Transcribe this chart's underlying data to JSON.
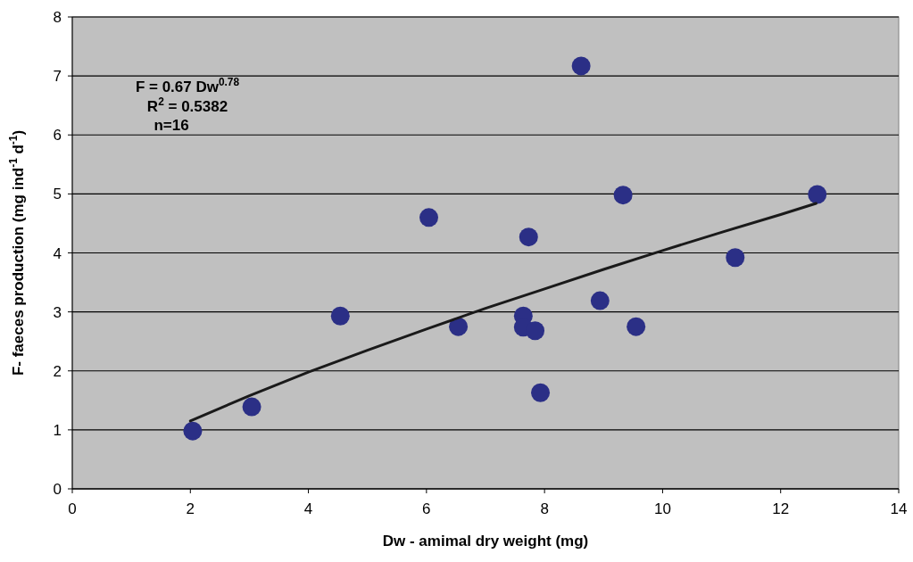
{
  "chart_data": {
    "type": "scatter",
    "xlabel": "Dw - amimal dry weight (mg)",
    "ylabel": "F- faeces production (mg ind$^{-1}$ d$^{-1}$)",
    "xlim": [
      0,
      14
    ],
    "xticks": [
      0,
      2,
      4,
      6,
      8,
      10,
      12,
      14
    ],
    "ylim": [
      0,
      8
    ],
    "yticks": [
      0,
      1,
      2,
      3,
      4,
      5,
      6,
      7,
      8
    ],
    "grid": "y",
    "marker": "circle",
    "annotations": [
      "F = 0.67 Dw$^{0.78}$",
      "R$^{2}$ = 0.5382",
      "n=16"
    ],
    "series": [
      {
        "color": "#2b2f86",
        "x": [
          2.04,
          3.04,
          4.54,
          6.04,
          6.54,
          7.64,
          7.64,
          7.73,
          7.84,
          7.93,
          8.62,
          8.94,
          9.33,
          9.55,
          11.23,
          12.62
        ],
        "values": [
          0.98,
          1.39,
          2.93,
          4.6,
          2.75,
          2.93,
          2.74,
          4.27,
          2.68,
          1.63,
          7.17,
          3.19,
          4.98,
          2.75,
          3.92,
          4.99
        ]
      },
      {
        "type": "line",
        "color": "#1a1a1a",
        "marker": "none",
        "line_style": "solid",
        "x": [
          2,
          3,
          4,
          5,
          6,
          7,
          8,
          9,
          10,
          11,
          12,
          12.6
        ],
        "values": [
          1.15,
          1.58,
          1.98,
          2.35,
          2.71,
          3.06,
          3.39,
          3.72,
          4.04,
          4.35,
          4.65,
          4.84
        ]
      }
    ]
  }
}
